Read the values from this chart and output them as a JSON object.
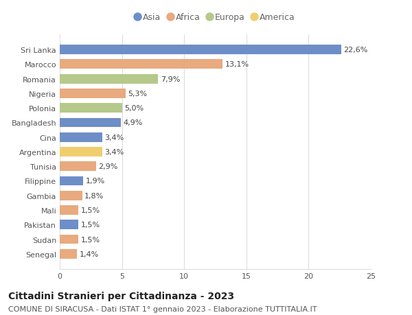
{
  "categories": [
    "Sri Lanka",
    "Marocco",
    "Romania",
    "Nigeria",
    "Polonia",
    "Bangladesh",
    "Cina",
    "Argentina",
    "Tunisia",
    "Filippine",
    "Gambia",
    "Mali",
    "Pakistan",
    "Sudan",
    "Senegal"
  ],
  "values": [
    22.6,
    13.1,
    7.9,
    5.3,
    5.0,
    4.9,
    3.4,
    3.4,
    2.9,
    1.9,
    1.8,
    1.5,
    1.5,
    1.5,
    1.4
  ],
  "labels": [
    "22,6%",
    "13,1%",
    "7,9%",
    "5,3%",
    "5,0%",
    "4,9%",
    "3,4%",
    "3,4%",
    "2,9%",
    "1,9%",
    "1,8%",
    "1,5%",
    "1,5%",
    "1,5%",
    "1,4%"
  ],
  "continents": [
    "Asia",
    "Africa",
    "Europa",
    "Africa",
    "Europa",
    "Asia",
    "Asia",
    "America",
    "Africa",
    "Asia",
    "Africa",
    "Africa",
    "Asia",
    "Africa",
    "Africa"
  ],
  "colors": {
    "Asia": "#6e8ec8",
    "Africa": "#e8aa7e",
    "Europa": "#b5c98a",
    "America": "#f0ce6e"
  },
  "legend_order": [
    "Asia",
    "Africa",
    "Europa",
    "America"
  ],
  "title": "Cittadini Stranieri per Cittadinanza - 2023",
  "subtitle": "COMUNE DI SIRACUSA - Dati ISTAT 1° gennaio 2023 - Elaborazione TUTTITALIA.IT",
  "xlim": [
    0,
    25
  ],
  "xticks": [
    0,
    5,
    10,
    15,
    20,
    25
  ],
  "background_color": "#ffffff",
  "grid_color": "#dddddd",
  "bar_height": 0.65,
  "title_fontsize": 10,
  "subtitle_fontsize": 8,
  "label_fontsize": 8,
  "tick_fontsize": 8,
  "legend_fontsize": 9
}
